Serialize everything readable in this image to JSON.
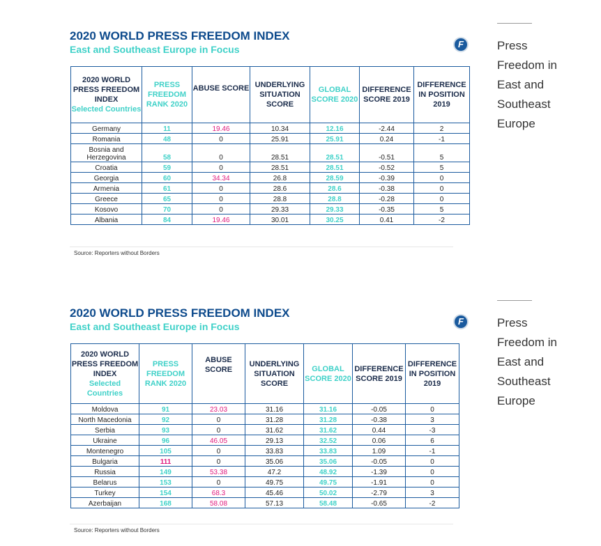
{
  "panels": [
    {
      "title": "2020 WORLD PRESS FREEDOM INDEX",
      "subtitle": "East and Southeast Europe in Focus",
      "logo": "F",
      "headers": {
        "country": "2020 WORLD PRESS FREEDOM INDEX",
        "country_sub": "Selected Countries",
        "rank": "PRESS FREEDOM RANK 2020",
        "abuse": "ABUSE SCORE",
        "underlying": "UNDERLYING SITUATION SCORE",
        "global": "GLOBAL SCORE 2020",
        "diff_score": "DIFFERENCE SCORE 2019",
        "diff_pos": "DIFFERENCE IN POSITION 2019"
      },
      "rows": [
        {
          "country": "Germany",
          "rank": "11",
          "abuse": "19.46",
          "underlying": "10.34",
          "global": "12.16",
          "diff_score": "-2.44",
          "diff_pos": "2"
        },
        {
          "country": "Romania",
          "rank": "48",
          "abuse": "0",
          "underlying": "25.91",
          "global": "25.91",
          "diff_score": "0.24",
          "diff_pos": "-1"
        },
        {
          "country": "Bosnia and Herzegovina",
          "rank": "58",
          "abuse": "0",
          "underlying": "28.51",
          "global": "28.51",
          "diff_score": "-0.51",
          "diff_pos": "5"
        },
        {
          "country": "Croatia",
          "rank": "59",
          "abuse": "0",
          "underlying": "28.51",
          "global": "28.51",
          "diff_score": "-0.52",
          "diff_pos": "5"
        },
        {
          "country": "Georgia",
          "rank": "60",
          "abuse": "34.34",
          "underlying": "26.8",
          "global": "28.59",
          "diff_score": "-0.39",
          "diff_pos": "0"
        },
        {
          "country": "Armenia",
          "rank": "61",
          "abuse": "0",
          "underlying": "28.6",
          "global": "28.6",
          "diff_score": "-0.38",
          "diff_pos": "0"
        },
        {
          "country": "Greece",
          "rank": "65",
          "abuse": "0",
          "underlying": "28.8",
          "global": "28.8",
          "diff_score": "-0.28",
          "diff_pos": "0"
        },
        {
          "country": "Kosovo",
          "rank": "70",
          "abuse": "0",
          "underlying": "29.33",
          "global": "29.33",
          "diff_score": "-0.35",
          "diff_pos": "5"
        },
        {
          "country": "Albania",
          "rank": "84",
          "abuse": "19.46",
          "underlying": "30.01",
          "global": "30.25",
          "diff_score": "0.41",
          "diff_pos": "-2"
        }
      ],
      "source": "Source: Reporters without Borders"
    },
    {
      "title": "2020 WORLD PRESS FREEDOM INDEX",
      "subtitle": "East and Southeast Europe in Focus",
      "logo": "F",
      "headers": {
        "country": "2020 WORLD PRESS FREEDOM INDEX",
        "country_sub": "Selected Countries",
        "rank": "PRESS FREEDOM RANK 2020",
        "abuse": "ABUSE SCORE",
        "underlying": "UNDERLYING SITUATION SCORE",
        "global": "GLOBAL SCORE 2020",
        "diff_score": "DIFFERENCE SCORE 2019",
        "diff_pos": "DIFFERENCE IN POSITION 2019"
      },
      "rows": [
        {
          "country": "Moldova",
          "rank": "91",
          "abuse": "23.03",
          "underlying": "31.16",
          "global": "31.16",
          "diff_score": "-0.05",
          "diff_pos": "0"
        },
        {
          "country": "North Macedonia",
          "rank": "92",
          "abuse": "0",
          "underlying": "31.28",
          "global": "31.28",
          "diff_score": "-0.38",
          "diff_pos": "3"
        },
        {
          "country": "Serbia",
          "rank": "93",
          "abuse": "0",
          "underlying": "31.62",
          "global": "31.62",
          "diff_score": "0.44",
          "diff_pos": "-3"
        },
        {
          "country": "Ukraine",
          "rank": "96",
          "abuse": "46.05",
          "underlying": "29.13",
          "global": "32.52",
          "diff_score": "0.06",
          "diff_pos": "6"
        },
        {
          "country": "Montenegro",
          "rank": "105",
          "abuse": "0",
          "underlying": "33.83",
          "global": "33.83",
          "diff_score": "1.09",
          "diff_pos": "-1"
        },
        {
          "country": "Bulgaria",
          "rank": "111",
          "abuse": "0",
          "underlying": "35.06",
          "global": "35.06",
          "diff_score": "-0.05",
          "diff_pos": "0"
        },
        {
          "country": "Russia",
          "rank": "149",
          "abuse": "53.38",
          "underlying": "47.2",
          "global": "48.92",
          "diff_score": "-1.39",
          "diff_pos": "0"
        },
        {
          "country": "Belarus",
          "rank": "153",
          "abuse": "0",
          "underlying": "49.75",
          "global": "49.75",
          "diff_score": "-1.91",
          "diff_pos": "0"
        },
        {
          "country": "Turkey",
          "rank": "154",
          "abuse": "68.3",
          "underlying": "45.46",
          "global": "50.02",
          "diff_score": "-2.79",
          "diff_pos": "3"
        },
        {
          "country": "Azerbaijan",
          "rank": "168",
          "abuse": "58.08",
          "underlying": "57.13",
          "global": "58.48",
          "diff_score": "-0.65",
          "diff_pos": "-2"
        }
      ],
      "source": "Source: Reporters without Borders"
    }
  ],
  "sidebar": [
    {
      "text": "Press Freedom in East and Southeast Europe"
    },
    {
      "text": "Press Freedom in East and Southeast Europe"
    }
  ],
  "colors": {
    "title": "#0d4a8c",
    "teal": "#3fd1c8",
    "pink": "#e0197d",
    "border": "#1a5a9e"
  }
}
